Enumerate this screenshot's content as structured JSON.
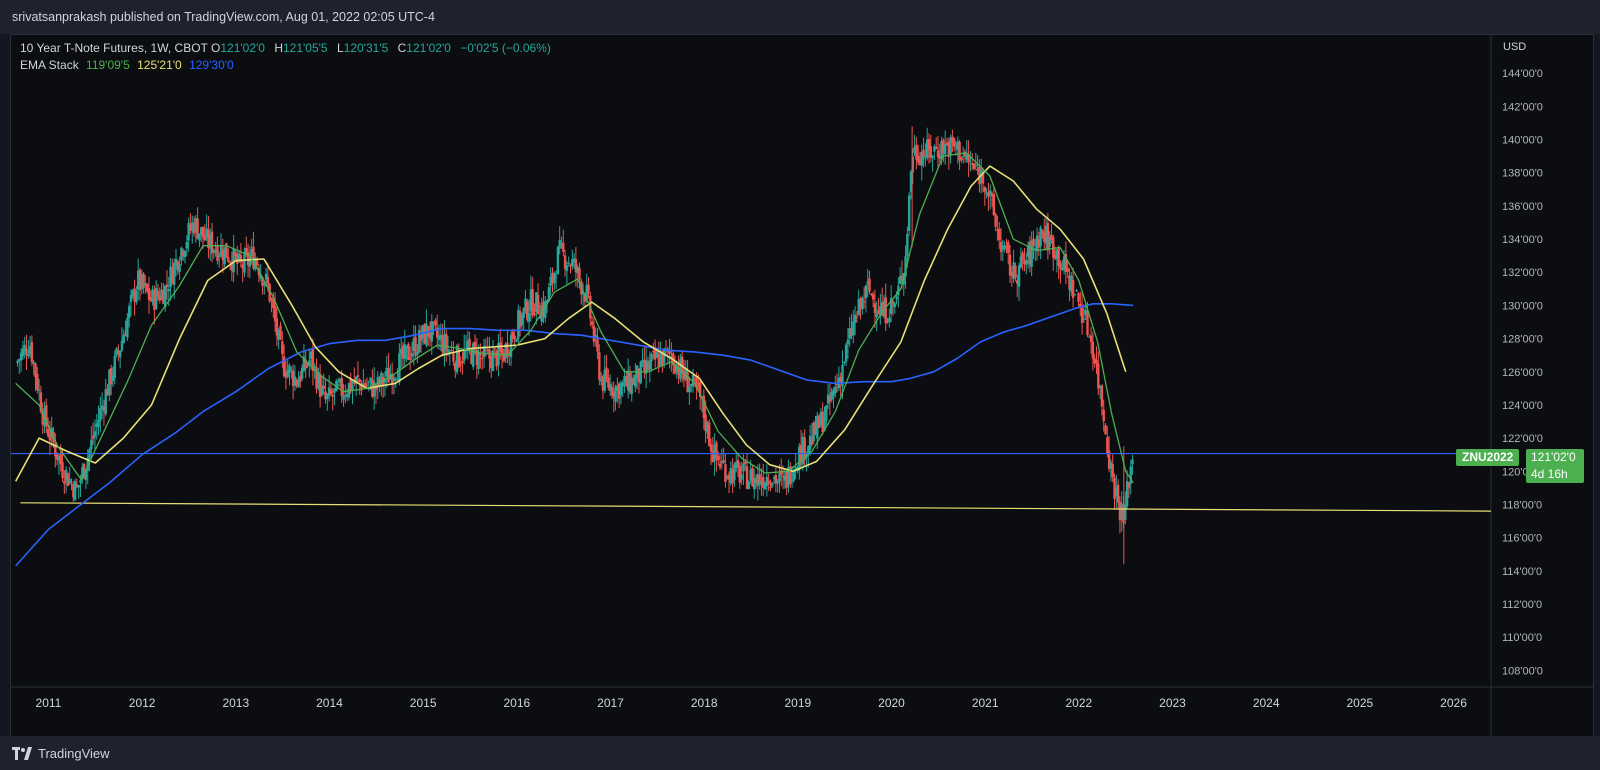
{
  "header": {
    "published": "srivatsanprakash published on TradingView.com, Aug 01, 2022 02:05 UTC-4"
  },
  "legend": {
    "title": "10 Year T-Note Futures, 1W, CBOT",
    "o_key": "O",
    "o_val": "121'02'0",
    "h_key": "H",
    "h_val": "121'05'5",
    "l_key": "L",
    "l_val": "120'31'5",
    "c_key": "C",
    "c_val": "121'02'0",
    "change": "−0'02'5 (−0.06%)",
    "ema_label": "EMA Stack",
    "ema_fast": "119'09'5",
    "ema_mid": "125'21'0",
    "ema_slow": "129'30'0"
  },
  "price_labels": {
    "symbol": "ZNU2022",
    "last_price": "121'02'0",
    "countdown": "4d 16h"
  },
  "footer": {
    "brand": "TradingView"
  },
  "colors": {
    "up": "#26a69a",
    "down": "#ef5350",
    "ema_fast": "#4caf50",
    "ema_mid": "#e8e074",
    "ema_slow": "#2962ff",
    "support_line": "#e8e074",
    "price_line": "#2962ff",
    "tag_bg": "#4caf50"
  },
  "chart_data": {
    "type": "candlestick",
    "currency": "USD",
    "timeframe": "1W",
    "x_ticks": [
      "2011",
      "2012",
      "2013",
      "2014",
      "2015",
      "2016",
      "2017",
      "2018",
      "2019",
      "2020",
      "2021",
      "2022",
      "2023",
      "2024",
      "2025",
      "2026"
    ],
    "y_ticks": [
      "144'00'0",
      "142'00'0",
      "140'00'0",
      "138'00'0",
      "136'00'0",
      "134'00'0",
      "132'00'0",
      "130'00'0",
      "128'00'0",
      "126'00'0",
      "124'00'0",
      "122'00'0",
      "120'00'0",
      "118'00'0",
      "116'00'0",
      "114'00'0",
      "112'00'0",
      "110'00'0",
      "108'00'0"
    ],
    "y_tick_values": [
      144,
      142,
      140,
      138,
      136,
      134,
      132,
      130,
      128,
      126,
      124,
      122,
      120,
      118,
      116,
      114,
      112,
      110,
      108
    ],
    "xlim": [
      2010.6,
      2026.4
    ],
    "ylim": [
      107,
      146.3
    ],
    "close_path": [
      [
        2010.65,
        126.5
      ],
      [
        2010.8,
        127.8
      ],
      [
        2010.95,
        123.2
      ],
      [
        2011.15,
        120.2
      ],
      [
        2011.3,
        118.8
      ],
      [
        2011.45,
        121.5
      ],
      [
        2011.6,
        124.5
      ],
      [
        2011.75,
        127.2
      ],
      [
        2011.95,
        131.5
      ],
      [
        2012.1,
        130.3
      ],
      [
        2012.25,
        131.0
      ],
      [
        2012.4,
        133.2
      ],
      [
        2012.55,
        135.0
      ],
      [
        2012.7,
        133.8
      ],
      [
        2012.9,
        133.2
      ],
      [
        2013.05,
        132.3
      ],
      [
        2013.2,
        133.0
      ],
      [
        2013.35,
        131.0
      ],
      [
        2013.5,
        126.5
      ],
      [
        2013.65,
        125.5
      ],
      [
        2013.8,
        126.8
      ],
      [
        2013.95,
        124.2
      ],
      [
        2014.1,
        124.8
      ],
      [
        2014.3,
        125.4
      ],
      [
        2014.5,
        125.0
      ],
      [
        2014.7,
        126.2
      ],
      [
        2014.9,
        127.5
      ],
      [
        2015.05,
        128.5
      ],
      [
        2015.2,
        127.8
      ],
      [
        2015.35,
        126.8
      ],
      [
        2015.5,
        127.2
      ],
      [
        2015.65,
        126.8
      ],
      [
        2015.85,
        127.0
      ],
      [
        2016.0,
        128.8
      ],
      [
        2016.15,
        130.2
      ],
      [
        2016.3,
        129.8
      ],
      [
        2016.45,
        133.2
      ],
      [
        2016.6,
        132.5
      ],
      [
        2016.75,
        130.5
      ],
      [
        2016.9,
        125.5
      ],
      [
        2017.05,
        125.0
      ],
      [
        2017.2,
        125.3
      ],
      [
        2017.35,
        126.0
      ],
      [
        2017.5,
        126.8
      ],
      [
        2017.65,
        127.0
      ],
      [
        2017.8,
        125.6
      ],
      [
        2017.95,
        124.5
      ],
      [
        2018.1,
        121.0
      ],
      [
        2018.25,
        120.0
      ],
      [
        2018.4,
        119.8
      ],
      [
        2018.55,
        119.5
      ],
      [
        2018.7,
        119.8
      ],
      [
        2018.85,
        119.2
      ],
      [
        2019.0,
        121.0
      ],
      [
        2019.15,
        122.0
      ],
      [
        2019.3,
        123.5
      ],
      [
        2019.45,
        125.8
      ],
      [
        2019.6,
        129.0
      ],
      [
        2019.75,
        131.0
      ],
      [
        2019.9,
        129.5
      ],
      [
        2020.05,
        130.2
      ],
      [
        2020.15,
        133.0
      ],
      [
        2020.22,
        139.3
      ],
      [
        2020.4,
        139.2
      ],
      [
        2020.55,
        139.6
      ],
      [
        2020.7,
        139.5
      ],
      [
        2020.85,
        138.4
      ],
      [
        2021.0,
        137.6
      ],
      [
        2021.15,
        134.0
      ],
      [
        2021.3,
        131.8
      ],
      [
        2021.45,
        132.8
      ],
      [
        2021.6,
        134.5
      ],
      [
        2021.75,
        133.4
      ],
      [
        2021.9,
        131.5
      ],
      [
        2022.05,
        129.5
      ],
      [
        2022.15,
        127.5
      ],
      [
        2022.25,
        124.0
      ],
      [
        2022.35,
        119.8
      ],
      [
        2022.42,
        118.2
      ],
      [
        2022.48,
        117.0
      ],
      [
        2022.53,
        119.5
      ],
      [
        2022.58,
        121.07
      ]
    ],
    "ema_fast_path": [
      [
        2010.65,
        125.3
      ],
      [
        2010.9,
        124.0
      ],
      [
        2011.1,
        121.5
      ],
      [
        2011.35,
        119.5
      ],
      [
        2011.6,
        122.5
      ],
      [
        2011.85,
        125.5
      ],
      [
        2012.1,
        128.8
      ],
      [
        2012.4,
        131.2
      ],
      [
        2012.65,
        133.6
      ],
      [
        2012.9,
        133.6
      ],
      [
        2013.15,
        133.0
      ],
      [
        2013.4,
        130.5
      ],
      [
        2013.65,
        127.2
      ],
      [
        2013.9,
        125.8
      ],
      [
        2014.15,
        124.8
      ],
      [
        2014.4,
        125.0
      ],
      [
        2014.65,
        125.7
      ],
      [
        2014.9,
        126.7
      ],
      [
        2015.15,
        127.6
      ],
      [
        2015.4,
        127.4
      ],
      [
        2015.65,
        127.1
      ],
      [
        2015.9,
        127.0
      ],
      [
        2016.15,
        128.5
      ],
      [
        2016.4,
        130.8
      ],
      [
        2016.65,
        131.6
      ],
      [
        2016.9,
        128.4
      ],
      [
        2017.15,
        126.0
      ],
      [
        2017.4,
        126.0
      ],
      [
        2017.65,
        126.6
      ],
      [
        2017.9,
        125.3
      ],
      [
        2018.15,
        122.4
      ],
      [
        2018.4,
        120.8
      ],
      [
        2018.65,
        119.9
      ],
      [
        2018.9,
        120.0
      ],
      [
        2019.15,
        121.2
      ],
      [
        2019.4,
        123.6
      ],
      [
        2019.65,
        127.3
      ],
      [
        2019.9,
        129.6
      ],
      [
        2020.1,
        131.0
      ],
      [
        2020.3,
        135.5
      ],
      [
        2020.55,
        139.0
      ],
      [
        2020.8,
        139.2
      ],
      [
        2021.05,
        137.8
      ],
      [
        2021.3,
        134.0
      ],
      [
        2021.55,
        133.3
      ],
      [
        2021.8,
        133.5
      ],
      [
        2022.0,
        131.5
      ],
      [
        2022.2,
        127.8
      ],
      [
        2022.35,
        123.5
      ],
      [
        2022.5,
        120.0
      ],
      [
        2022.58,
        119.3
      ]
    ],
    "ema_mid_path": [
      [
        2010.65,
        119.4
      ],
      [
        2010.9,
        122.0
      ],
      [
        2011.2,
        121.2
      ],
      [
        2011.5,
        120.5
      ],
      [
        2011.8,
        122.0
      ],
      [
        2012.1,
        124.0
      ],
      [
        2012.4,
        128.0
      ],
      [
        2012.7,
        131.5
      ],
      [
        2013.0,
        132.7
      ],
      [
        2013.3,
        132.8
      ],
      [
        2013.6,
        130.0
      ],
      [
        2013.85,
        127.5
      ],
      [
        2014.1,
        126.0
      ],
      [
        2014.4,
        125.0
      ],
      [
        2014.7,
        125.3
      ],
      [
        2014.95,
        126.2
      ],
      [
        2015.2,
        127.0
      ],
      [
        2015.5,
        127.4
      ],
      [
        2015.75,
        127.5
      ],
      [
        2016.0,
        127.6
      ],
      [
        2016.3,
        128.0
      ],
      [
        2016.55,
        129.2
      ],
      [
        2016.8,
        130.2
      ],
      [
        2017.05,
        129.2
      ],
      [
        2017.35,
        127.8
      ],
      [
        2017.65,
        126.8
      ],
      [
        2017.95,
        125.6
      ],
      [
        2018.2,
        123.5
      ],
      [
        2018.45,
        121.6
      ],
      [
        2018.7,
        120.4
      ],
      [
        2018.95,
        120.0
      ],
      [
        2019.2,
        120.6
      ],
      [
        2019.5,
        122.5
      ],
      [
        2019.8,
        125.2
      ],
      [
        2020.1,
        127.8
      ],
      [
        2020.35,
        131.5
      ],
      [
        2020.6,
        134.6
      ],
      [
        2020.85,
        137.2
      ],
      [
        2021.05,
        138.4
      ],
      [
        2021.3,
        137.5
      ],
      [
        2021.55,
        135.8
      ],
      [
        2021.8,
        134.6
      ],
      [
        2022.05,
        132.8
      ],
      [
        2022.3,
        129.5
      ],
      [
        2022.5,
        126.0
      ]
    ],
    "ema_slow_path": [
      [
        2010.65,
        114.3
      ],
      [
        2011.0,
        116.5
      ],
      [
        2011.3,
        117.8
      ],
      [
        2011.65,
        119.3
      ],
      [
        2012.0,
        121.0
      ],
      [
        2012.35,
        122.3
      ],
      [
        2012.65,
        123.6
      ],
      [
        2013.0,
        124.8
      ],
      [
        2013.35,
        126.2
      ],
      [
        2013.7,
        127.2
      ],
      [
        2014.0,
        127.7
      ],
      [
        2014.3,
        127.9
      ],
      [
        2014.6,
        127.9
      ],
      [
        2014.9,
        128.2
      ],
      [
        2015.2,
        128.6
      ],
      [
        2015.5,
        128.6
      ],
      [
        2015.8,
        128.5
      ],
      [
        2016.1,
        128.5
      ],
      [
        2016.4,
        128.3
      ],
      [
        2016.7,
        128.2
      ],
      [
        2017.0,
        127.9
      ],
      [
        2017.3,
        127.6
      ],
      [
        2017.6,
        127.3
      ],
      [
        2017.9,
        127.2
      ],
      [
        2018.2,
        127.0
      ],
      [
        2018.5,
        126.7
      ],
      [
        2018.8,
        126.1
      ],
      [
        2019.1,
        125.5
      ],
      [
        2019.4,
        125.3
      ],
      [
        2019.7,
        125.4
      ],
      [
        2020.0,
        125.4
      ],
      [
        2020.2,
        125.6
      ],
      [
        2020.45,
        126.0
      ],
      [
        2020.7,
        126.8
      ],
      [
        2020.95,
        127.8
      ],
      [
        2021.2,
        128.4
      ],
      [
        2021.45,
        128.8
      ],
      [
        2021.7,
        129.3
      ],
      [
        2021.95,
        129.8
      ],
      [
        2022.15,
        130.1
      ],
      [
        2022.35,
        130.1
      ],
      [
        2022.58,
        130.0
      ]
    ],
    "support_line": [
      [
        2010.7,
        118.1
      ],
      [
        2026.4,
        117.6
      ]
    ],
    "last_price": 121.07,
    "symbol": "ZNU2022"
  }
}
